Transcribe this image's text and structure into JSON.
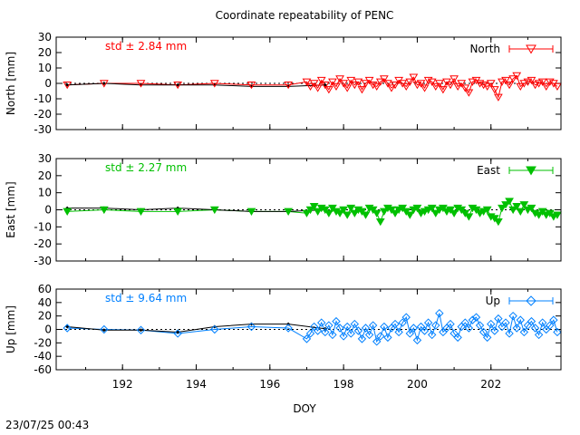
{
  "title": "Coordinate repeatability of PENC",
  "timestamp": "23/07/25 00:43",
  "xlabel": "DOY",
  "x_ticks": [
    "192",
    "194",
    "196",
    "198",
    "200",
    "202"
  ],
  "chart_data": [
    {
      "type": "scatter",
      "legend": "North",
      "legend_position": "top-right",
      "ylabel": "North [mm]",
      "std_label": "std ± 2.84 mm",
      "color": "#ff0000",
      "marker": "open-triangle-down",
      "ylim": [
        -30,
        30
      ],
      "yticks": [
        "30",
        "20",
        "10",
        "0",
        "-10",
        "-20",
        "-30"
      ],
      "xlim": [
        190.2,
        203.9
      ],
      "ref_x": [
        190.5,
        191.5,
        192.5,
        193.5,
        194.5,
        195.5,
        196.5,
        197.5
      ],
      "ref_y": [
        -1,
        0,
        -1,
        -1,
        -1,
        -2,
        -2,
        -1
      ],
      "x": [
        190.5,
        191.5,
        192.5,
        193.5,
        194.5,
        195.5,
        196.5,
        197.0,
        197.1,
        197.2,
        197.3,
        197.4,
        197.5,
        197.6,
        197.7,
        197.8,
        197.9,
        198.0,
        198.1,
        198.2,
        198.3,
        198.4,
        198.5,
        198.6,
        198.7,
        198.8,
        198.9,
        199.0,
        199.1,
        199.2,
        199.3,
        199.4,
        199.5,
        199.6,
        199.7,
        199.8,
        199.9,
        200.0,
        200.1,
        200.2,
        200.3,
        200.4,
        200.5,
        200.6,
        200.7,
        200.8,
        200.9,
        201.0,
        201.1,
        201.2,
        201.3,
        201.4,
        201.5,
        201.6,
        201.7,
        201.8,
        201.9,
        202.0,
        202.1,
        202.2,
        202.3,
        202.4,
        202.5,
        202.6,
        202.7,
        202.8,
        202.9,
        203.0,
        203.1,
        203.2,
        203.3,
        203.4,
        203.5,
        203.6,
        203.7,
        203.8
      ],
      "y": [
        -1,
        0,
        0,
        -1,
        0,
        -1,
        -1,
        1,
        -2,
        0,
        -3,
        2,
        -1,
        -4,
        1,
        -2,
        3,
        0,
        -3,
        2,
        -1,
        1,
        -4,
        0,
        2,
        -1,
        -2,
        1,
        3,
        0,
        -3,
        -1,
        2,
        0,
        -2,
        1,
        4,
        -1,
        0,
        -3,
        2,
        1,
        -2,
        0,
        -4,
        1,
        -1,
        3,
        -2,
        0,
        -3,
        -6,
        1,
        2,
        0,
        -1,
        -2,
        0,
        -4,
        -9,
        1,
        2,
        -1,
        3,
        5,
        -2,
        0,
        1,
        2,
        -1,
        0,
        1,
        -2,
        1,
        0,
        -2
      ]
    },
    {
      "type": "scatter",
      "legend": "East",
      "legend_position": "top-right",
      "ylabel": "East [mm]",
      "std_label": "std ± 2.27 mm",
      "color": "#00c000",
      "marker": "filled-triangle-down",
      "ylim": [
        -30,
        30
      ],
      "yticks": [
        "30",
        "20",
        "10",
        "0",
        "-10",
        "-20",
        "-30"
      ],
      "xlim": [
        190.2,
        203.9
      ],
      "ref_x": [
        190.5,
        191.5,
        192.5,
        193.5,
        194.5,
        195.5,
        196.5,
        197.5
      ],
      "ref_y": [
        1,
        1,
        0,
        1,
        0,
        -1,
        -1,
        0
      ],
      "x": [
        190.5,
        191.5,
        192.5,
        193.5,
        194.5,
        195.5,
        196.5,
        197.0,
        197.1,
        197.2,
        197.3,
        197.4,
        197.5,
        197.6,
        197.7,
        197.8,
        197.9,
        198.0,
        198.1,
        198.2,
        198.3,
        198.4,
        198.5,
        198.6,
        198.7,
        198.8,
        198.9,
        199.0,
        199.1,
        199.2,
        199.3,
        199.4,
        199.5,
        199.6,
        199.7,
        199.8,
        199.9,
        200.0,
        200.1,
        200.2,
        200.3,
        200.4,
        200.5,
        200.6,
        200.7,
        200.8,
        200.9,
        201.0,
        201.1,
        201.2,
        201.3,
        201.4,
        201.5,
        201.6,
        201.7,
        201.8,
        201.9,
        202.0,
        202.1,
        202.2,
        202.3,
        202.4,
        202.5,
        202.6,
        202.7,
        202.8,
        202.9,
        203.0,
        203.1,
        203.2,
        203.3,
        203.4,
        203.5,
        203.6,
        203.7,
        203.8
      ],
      "y": [
        -1,
        0,
        -1,
        -1,
        0,
        -1,
        -1,
        -2,
        0,
        2,
        -1,
        1,
        0,
        -2,
        1,
        -1,
        -2,
        0,
        -3,
        1,
        -2,
        0,
        -1,
        -3,
        1,
        0,
        -2,
        -7,
        -1,
        1,
        0,
        -2,
        0,
        1,
        -1,
        -3,
        0,
        1,
        -2,
        -1,
        0,
        1,
        -2,
        0,
        1,
        -1,
        0,
        -2,
        1,
        0,
        -2,
        -4,
        1,
        0,
        -2,
        -1,
        0,
        -4,
        -5,
        -7,
        1,
        3,
        5,
        0,
        2,
        -1,
        3,
        0,
        1,
        -2,
        -3,
        -1,
        -3,
        -2,
        -4,
        -3
      ]
    },
    {
      "type": "scatter",
      "legend": "Up",
      "legend_position": "top-right",
      "ylabel": "Up [mm]",
      "std_label": "std ± 9.64 mm",
      "color": "#0080ff",
      "marker": "open-diamond",
      "ylim": [
        -60,
        60
      ],
      "yticks": [
        "60",
        "40",
        "20",
        "0",
        "-20",
        "-40",
        "-60"
      ],
      "xlim": [
        190.2,
        203.9
      ],
      "ref_x": [
        190.5,
        191.5,
        192.5,
        193.5,
        194.5,
        195.5,
        196.5,
        197.5
      ],
      "ref_y": [
        4,
        -1,
        -1,
        -4,
        4,
        8,
        8,
        1
      ],
      "x": [
        190.5,
        191.5,
        192.5,
        193.5,
        194.5,
        195.5,
        196.5,
        197.0,
        197.1,
        197.2,
        197.3,
        197.4,
        197.5,
        197.6,
        197.7,
        197.8,
        197.9,
        198.0,
        198.1,
        198.2,
        198.3,
        198.4,
        198.5,
        198.6,
        198.7,
        198.8,
        198.9,
        199.0,
        199.1,
        199.2,
        199.3,
        199.4,
        199.5,
        199.6,
        199.7,
        199.8,
        199.9,
        200.0,
        200.1,
        200.2,
        200.3,
        200.4,
        200.5,
        200.6,
        200.7,
        200.8,
        200.9,
        201.0,
        201.1,
        201.2,
        201.3,
        201.4,
        201.5,
        201.6,
        201.7,
        201.8,
        201.9,
        202.0,
        202.1,
        202.2,
        202.3,
        202.4,
        202.5,
        202.6,
        202.7,
        202.8,
        202.9,
        203.0,
        203.1,
        203.2,
        203.3,
        203.4,
        203.5,
        203.6,
        203.7,
        203.8
      ],
      "y": [
        2,
        0,
        -1,
        -6,
        0,
        4,
        2,
        -14,
        -6,
        4,
        -2,
        10,
        -4,
        6,
        -8,
        12,
        2,
        -10,
        4,
        -6,
        8,
        -2,
        -14,
        2,
        -8,
        6,
        -18,
        -10,
        4,
        -12,
        2,
        8,
        -4,
        10,
        18,
        -6,
        2,
        -16,
        4,
        -2,
        10,
        -8,
        6,
        24,
        -4,
        2,
        8,
        -6,
        -12,
        4,
        10,
        2,
        14,
        18,
        6,
        -4,
        -12,
        8,
        -2,
        16,
        4,
        10,
        -6,
        20,
        2,
        14,
        -4,
        6,
        12,
        2,
        -8,
        10,
        0,
        6,
        14,
        -4
      ]
    }
  ]
}
